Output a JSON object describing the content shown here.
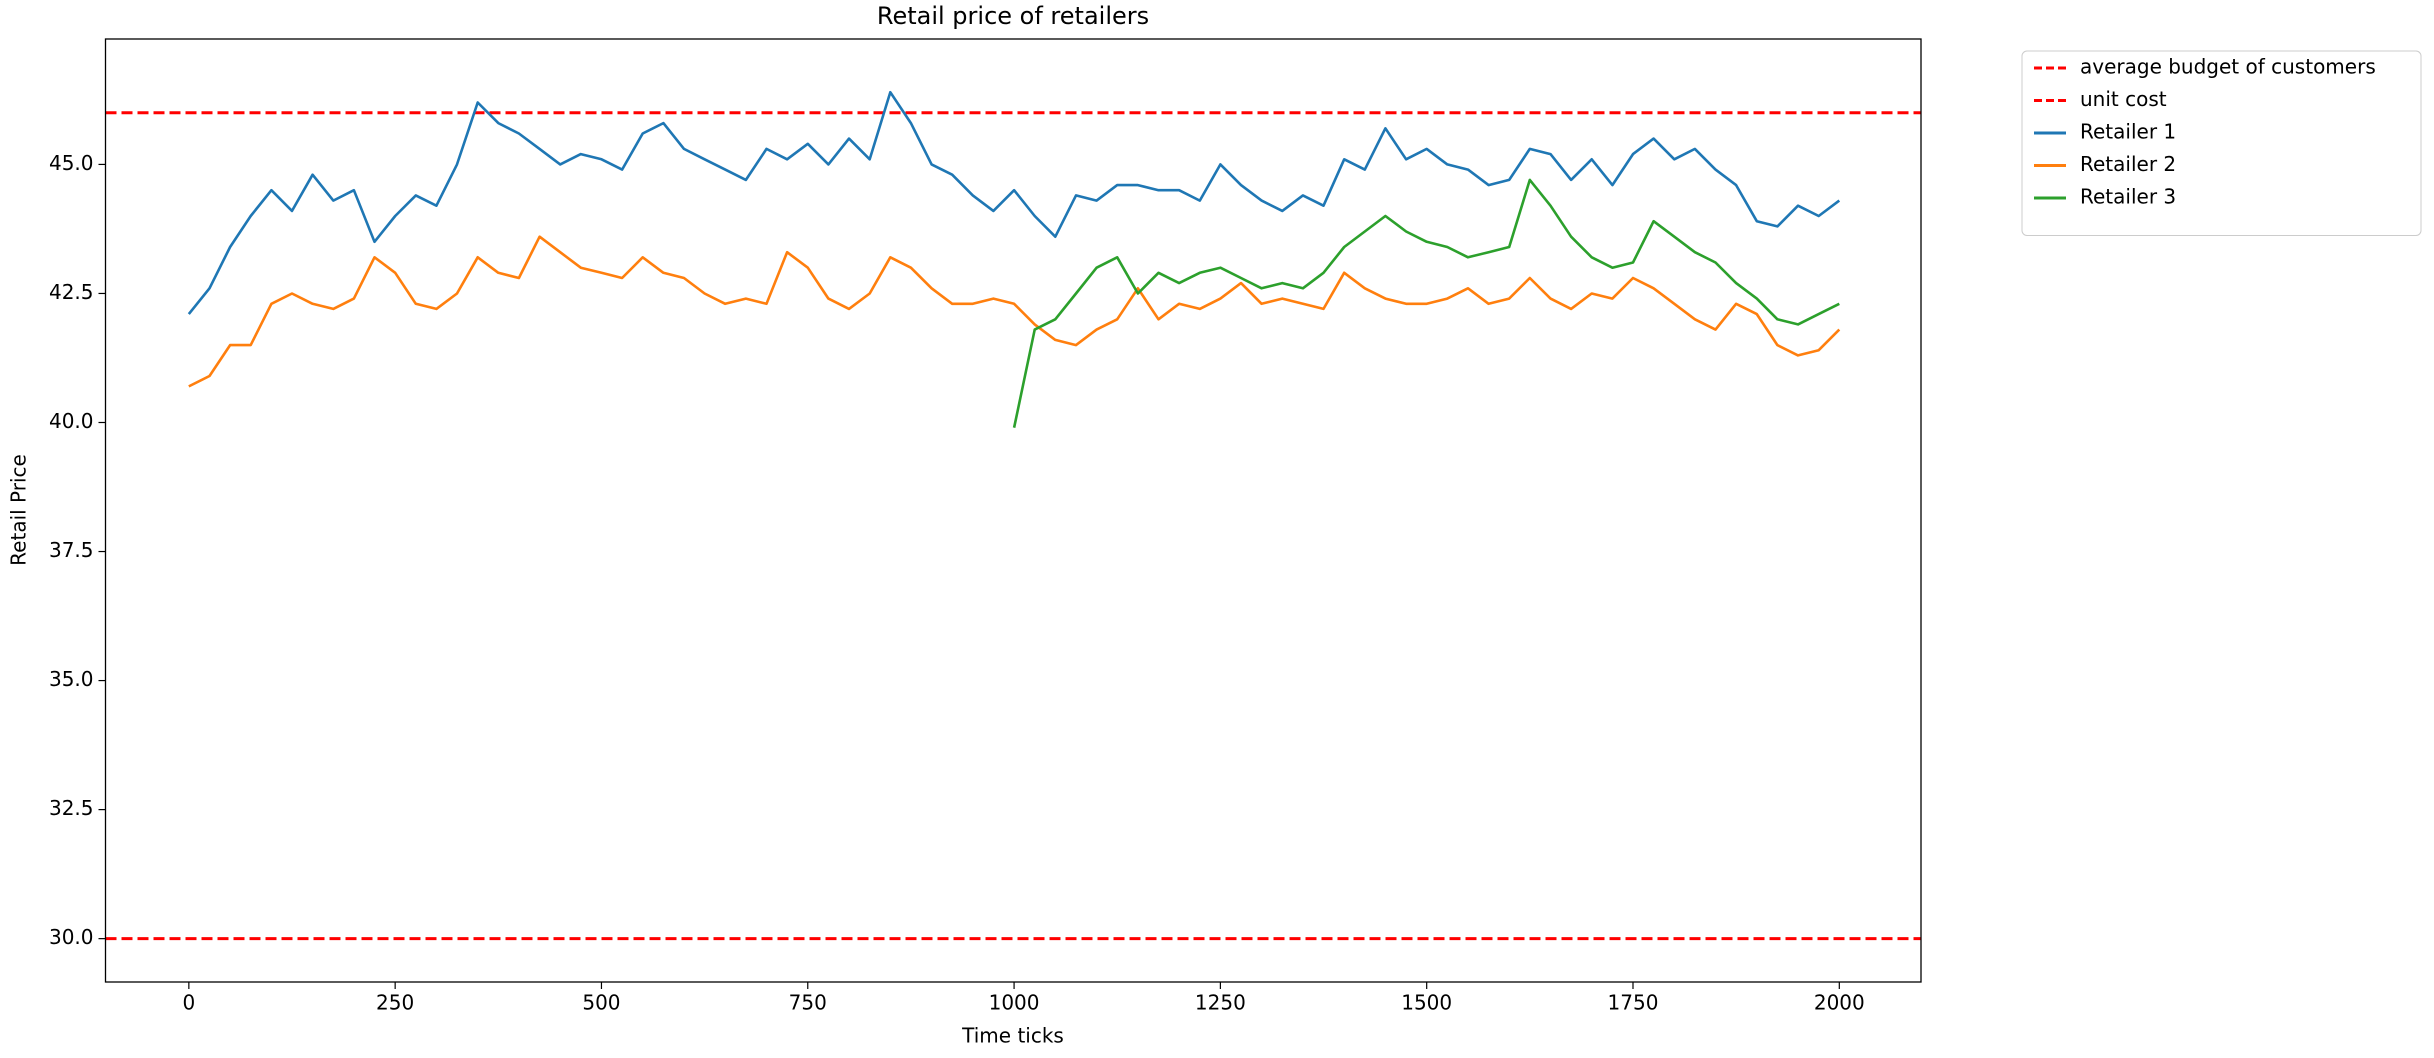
{
  "chart_data": {
    "type": "line",
    "title": "Retail price of retailers",
    "xlabel": "Time ticks",
    "ylabel": "Retail Price",
    "x": [
      0,
      25,
      50,
      75,
      100,
      125,
      150,
      175,
      200,
      225,
      250,
      275,
      300,
      325,
      350,
      375,
      400,
      425,
      450,
      475,
      500,
      525,
      550,
      575,
      600,
      625,
      650,
      675,
      700,
      725,
      750,
      775,
      800,
      825,
      850,
      875,
      900,
      925,
      950,
      975,
      1000,
      1025,
      1050,
      1075,
      1100,
      1125,
      1150,
      1175,
      1200,
      1225,
      1250,
      1275,
      1300,
      1325,
      1350,
      1375,
      1400,
      1425,
      1450,
      1475,
      1500,
      1525,
      1550,
      1575,
      1600,
      1625,
      1650,
      1675,
      1700,
      1725,
      1750,
      1775,
      1800,
      1825,
      1850,
      1875,
      1900,
      1925,
      1950,
      1975,
      2000
    ],
    "hlines": [
      {
        "name": "average budget of customers",
        "color": "#ff0000",
        "y": 46,
        "dashed": true
      },
      {
        "name": "unit cost",
        "color": "#ff0000",
        "y": 30,
        "dashed": true
      }
    ],
    "series": [
      {
        "name": "Retailer 1",
        "color": "#1f77b4",
        "values": [
          42.1,
          42.6,
          43.4,
          44.0,
          44.5,
          44.1,
          44.8,
          44.3,
          44.5,
          43.5,
          44.0,
          44.4,
          44.2,
          45.0,
          46.2,
          45.8,
          45.6,
          45.3,
          45.0,
          45.2,
          45.1,
          44.9,
          45.6,
          45.8,
          45.3,
          45.1,
          44.9,
          44.7,
          45.3,
          45.1,
          45.4,
          45.0,
          45.5,
          45.1,
          46.4,
          45.8,
          45.0,
          44.8,
          44.4,
          44.1,
          44.5,
          44.0,
          43.6,
          44.4,
          44.3,
          44.6,
          44.6,
          44.5,
          44.5,
          44.3,
          45.0,
          44.6,
          44.3,
          44.1,
          44.4,
          44.2,
          45.1,
          44.9,
          45.7,
          45.1,
          45.3,
          45.0,
          44.9,
          44.6,
          44.7,
          45.3,
          45.2,
          44.7,
          45.1,
          44.6,
          45.2,
          45.5,
          45.1,
          45.3,
          44.9,
          44.6,
          43.9,
          43.8,
          44.2,
          44.0,
          44.3
        ]
      },
      {
        "name": "Retailer 2",
        "color": "#ff7f0e",
        "values": [
          40.7,
          40.9,
          41.5,
          41.5,
          42.3,
          42.5,
          42.3,
          42.2,
          42.4,
          43.2,
          42.9,
          42.3,
          42.2,
          42.5,
          43.2,
          42.9,
          42.8,
          43.6,
          43.3,
          43.0,
          42.9,
          42.8,
          43.2,
          42.9,
          42.8,
          42.5,
          42.3,
          42.4,
          42.3,
          43.3,
          43.0,
          42.4,
          42.2,
          42.5,
          43.2,
          43.0,
          42.6,
          42.3,
          42.3,
          42.4,
          42.3,
          41.9,
          41.6,
          41.5,
          41.8,
          42.0,
          42.6,
          42.0,
          42.3,
          42.2,
          42.4,
          42.7,
          42.3,
          42.4,
          42.3,
          42.2,
          42.9,
          42.6,
          42.4,
          42.3,
          42.3,
          42.4,
          42.6,
          42.3,
          42.4,
          42.8,
          42.4,
          42.2,
          42.5,
          42.4,
          42.8,
          42.6,
          42.3,
          42.0,
          41.8,
          42.3,
          42.1,
          41.5,
          41.3,
          41.4,
          41.8
        ]
      },
      {
        "name": "Retailer 3",
        "color": "#2ca02c",
        "values": [
          null,
          null,
          null,
          null,
          null,
          null,
          null,
          null,
          null,
          null,
          null,
          null,
          null,
          null,
          null,
          null,
          null,
          null,
          null,
          null,
          null,
          null,
          null,
          null,
          null,
          null,
          null,
          null,
          null,
          null,
          null,
          null,
          null,
          null,
          null,
          null,
          null,
          null,
          null,
          null,
          39.9,
          41.8,
          42.0,
          42.5,
          43.0,
          43.2,
          42.5,
          42.9,
          42.7,
          42.9,
          43.0,
          42.8,
          42.6,
          42.7,
          42.6,
          42.9,
          43.4,
          43.7,
          44.0,
          43.7,
          43.5,
          43.4,
          43.2,
          43.3,
          43.4,
          44.7,
          44.2,
          43.6,
          43.2,
          43.0,
          43.1,
          43.9,
          43.6,
          43.3,
          43.1,
          42.7,
          42.4,
          42.0,
          41.9,
          42.1,
          42.3
        ]
      }
    ],
    "xlim": [
      -101,
      2099
    ],
    "ylim": [
      29.16,
      47.43
    ],
    "xticks": [
      0,
      250,
      500,
      750,
      1000,
      1250,
      1500,
      1750,
      2000
    ],
    "yticks": [
      {
        "value": 30,
        "label": "30.0"
      },
      {
        "value": 32.5,
        "label": "32.5"
      },
      {
        "value": 35,
        "label": "35.0"
      },
      {
        "value": 37.5,
        "label": "37.5"
      },
      {
        "value": 40,
        "label": "40.0"
      },
      {
        "value": 42.5,
        "label": "42.5"
      },
      {
        "value": 45,
        "label": "45.0"
      }
    ],
    "grid": false,
    "legend": "outside-upper-right"
  }
}
